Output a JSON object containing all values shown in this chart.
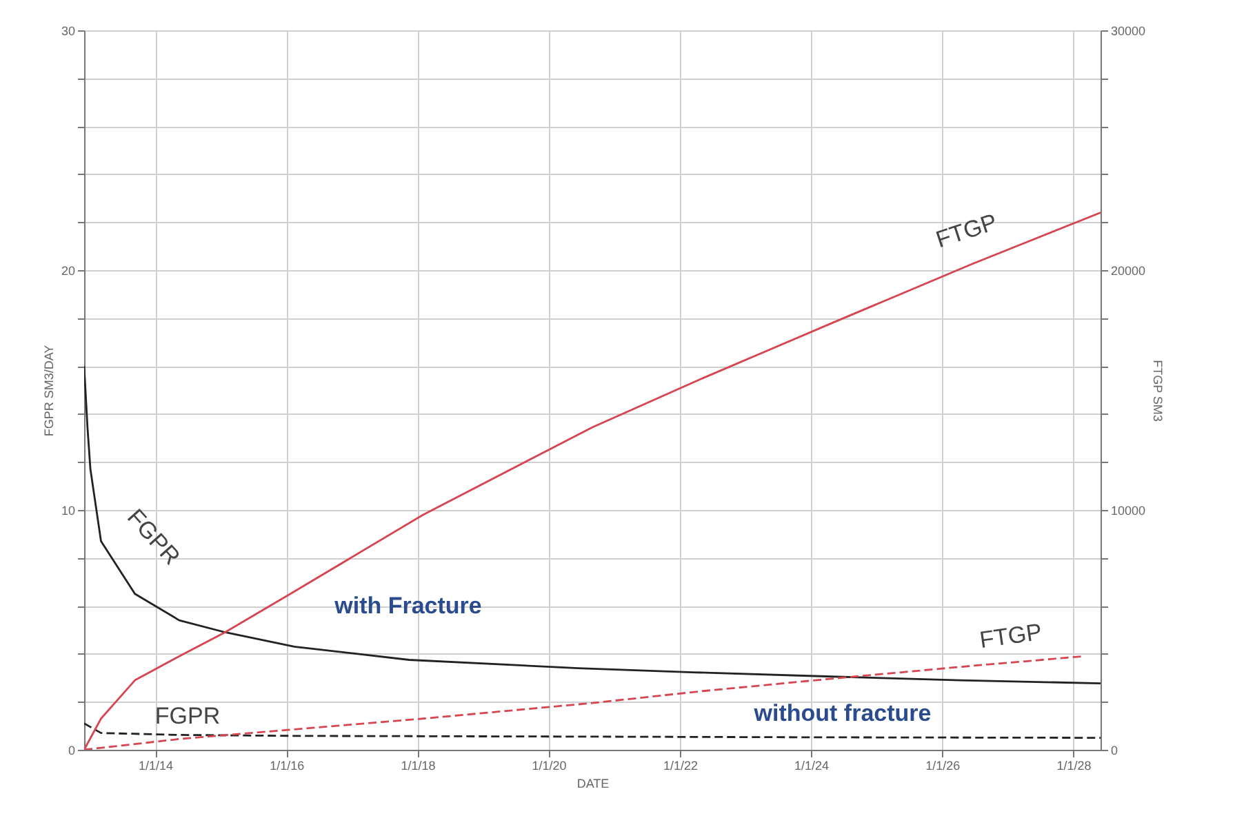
{
  "chart_data": {
    "type": "line",
    "xlabel": "DATE",
    "ylabel": "FGPR SM3/DAY",
    "y2label": "FTGP SM3",
    "xlim": [
      "2012-12-01",
      "2028-06-01"
    ],
    "xticks": [
      {
        "value": "2014-01-01",
        "label": "1/1/14"
      },
      {
        "value": "2016-01-01",
        "label": "1/1/16"
      },
      {
        "value": "2018-01-01",
        "label": "1/1/18"
      },
      {
        "value": "2020-01-01",
        "label": "1/1/20"
      },
      {
        "value": "2022-01-01",
        "label": "1/1/22"
      },
      {
        "value": "2024-01-01",
        "label": "1/1/24"
      },
      {
        "value": "2026-01-01",
        "label": "1/1/26"
      },
      {
        "value": "2028-01-01",
        "label": "1/1/28"
      }
    ],
    "ylim": [
      0,
      30
    ],
    "yticks": [
      0,
      {
        "value": 2,
        "label": null
      },
      {
        "value": 4,
        "label": null
      },
      {
        "value": 6,
        "label": null
      },
      {
        "value": 8,
        "label": null
      },
      10,
      {
        "value": 12,
        "label": null
      },
      {
        "value": 14,
        "label": null
      },
      {
        "value": 16,
        "label": null
      },
      {
        "value": 18,
        "label": null
      },
      20,
      {
        "value": 22,
        "label": null
      },
      {
        "value": 24,
        "label": null
      },
      {
        "value": 26,
        "label": null
      },
      {
        "value": 28,
        "label": null
      },
      30
    ],
    "y2lim": [
      0,
      30000
    ],
    "y2ticks": [
      0,
      {
        "value": 2000,
        "label": null
      },
      {
        "value": 4000,
        "label": null
      },
      {
        "value": 6000,
        "label": null
      },
      {
        "value": 8000,
        "label": null
      },
      10000,
      {
        "value": 12000,
        "label": null
      },
      {
        "value": 14000,
        "label": null
      },
      {
        "value": 16000,
        "label": null
      },
      {
        "value": 18000,
        "label": null
      },
      20000,
      {
        "value": 22000,
        "label": null
      },
      {
        "value": 24000,
        "label": null
      },
      {
        "value": 26000,
        "label": null
      },
      {
        "value": 28000,
        "label": null
      },
      30000
    ],
    "grid": true,
    "marker": "none",
    "series": [
      {
        "type": "line",
        "color": "#222222",
        "line_style": "solid",
        "x": [
          "2012-12-01",
          "2012-12-20",
          "2013-01-05",
          "2013-03-05",
          "2013-09-10",
          "2014-05-15",
          "2015-01-25",
          "2016-02-15",
          "2017-11-15",
          "2020-06-15",
          "2022-03-15",
          "2024-03-25",
          "2026-04-10",
          "2028-06-01"
        ],
        "values": [
          16.0,
          13.4,
          11.7,
          8.7,
          6.5,
          5.4,
          4.9,
          4.3,
          3.75,
          3.4,
          3.23,
          3.06,
          2.9,
          2.77
        ]
      },
      {
        "type": "line",
        "color": "#222222",
        "line_style": "dashed",
        "x": [
          "2012-12-01",
          "2013-03-05",
          "2014-05-15",
          "2016-02-15",
          "2020-06-15",
          "2024-03-25",
          "2028-06-01"
        ],
        "values": [
          1.1,
          0.7,
          0.62,
          0.58,
          0.55,
          0.52,
          0.5
        ]
      },
      {
        "type": "line",
        "axis": "y2",
        "color": "#d64550",
        "line_style": "solid",
        "x": [
          "2012-12-01",
          "2013-03-05",
          "2013-09-10",
          "2014-05-15",
          "2015-01-25",
          "2016-02-15",
          "2018-02-01",
          "2020-09-01",
          "2022-05-10",
          "2024-06-15",
          "2026-06-15",
          "2028-06-01"
        ],
        "values": [
          0,
          1300,
          2900,
          3900,
          4900,
          6600,
          9800,
          13450,
          15500,
          17950,
          20250,
          22400
        ]
      },
      {
        "type": "line",
        "axis": "y2",
        "color": "#d64550",
        "line_style": "dashed",
        "x": [
          "2012-12-01",
          "2014-05-15",
          "2016-02-15",
          "2018-02-01",
          "2020-09-01",
          "2022-05-10",
          "2024-06-15",
          "2026-06-15",
          "2028-03-01"
        ],
        "values": [
          0,
          450,
          850,
          1300,
          1950,
          2450,
          3000,
          3500,
          3900
        ]
      }
    ],
    "annotations": [
      "FGPR",
      "with Fracture",
      "FGPR",
      "FTGP",
      "FTGP",
      "without fracture"
    ]
  }
}
